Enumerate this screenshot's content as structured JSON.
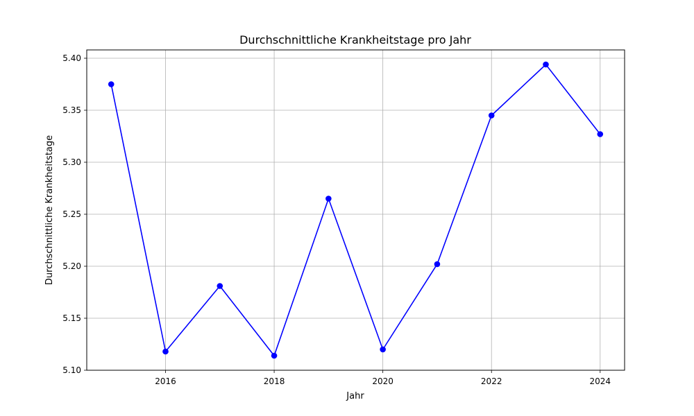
{
  "chart_data": {
    "type": "line",
    "title": "Durchschnittliche Krankheitstage pro Jahr",
    "xlabel": "Jahr",
    "ylabel": "Durchschnittliche Krankheitstage",
    "x": [
      2015,
      2016,
      2017,
      2018,
      2019,
      2020,
      2021,
      2022,
      2023,
      2024
    ],
    "series": [
      {
        "values": [
          5.375,
          5.118,
          5.181,
          5.114,
          5.265,
          5.12,
          5.202,
          5.345,
          5.394,
          5.327
        ],
        "color": "#0000ff",
        "marker": "circle"
      }
    ],
    "xlim": [
      2014.55,
      2024.45
    ],
    "ylim": [
      5.1,
      5.408
    ],
    "xticks": [
      2016,
      2018,
      2020,
      2022,
      2024
    ],
    "yticks": [
      5.1,
      5.15,
      5.2,
      5.25,
      5.3,
      5.35,
      5.4
    ],
    "ytick_labels": [
      "5.10",
      "5.15",
      "5.20",
      "5.25",
      "5.30",
      "5.35",
      "5.40"
    ],
    "grid": true
  }
}
